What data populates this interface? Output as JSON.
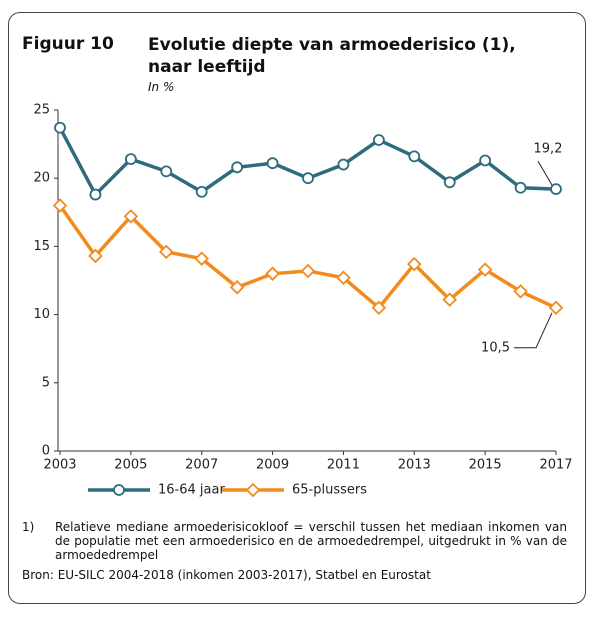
{
  "chart_data": {
    "type": "line",
    "label": "Figuur 10",
    "title": "Evolutie diepte van armoederisico (1), naar leeftijd",
    "subtitle": "In %",
    "x": [
      2003,
      2004,
      2005,
      2006,
      2007,
      2008,
      2009,
      2010,
      2011,
      2012,
      2013,
      2014,
      2015,
      2016,
      2017
    ],
    "series": [
      {
        "name": "16-64 jaar",
        "color": "#2e6b7e",
        "marker": "circle",
        "values": [
          23.7,
          18.8,
          21.4,
          20.5,
          19.0,
          20.8,
          21.1,
          20.0,
          21.0,
          22.8,
          21.6,
          19.7,
          21.3,
          19.3,
          19.2
        ],
        "value_labels": [
          null,
          null,
          null,
          null,
          null,
          null,
          null,
          null,
          null,
          null,
          null,
          null,
          null,
          null,
          "19,2"
        ]
      },
      {
        "name": "65-plussers",
        "color": "#f28a1e",
        "marker": "diamond",
        "values": [
          18.0,
          14.3,
          17.2,
          14.6,
          14.1,
          12.0,
          13.0,
          13.2,
          12.7,
          10.5,
          13.7,
          11.1,
          13.3,
          11.7,
          10.5
        ],
        "value_labels": [
          null,
          null,
          null,
          null,
          null,
          null,
          null,
          null,
          null,
          null,
          null,
          null,
          null,
          null,
          "10,5"
        ]
      }
    ],
    "xlim": [
      2003,
      2017
    ],
    "xticks": [
      2003,
      2005,
      2007,
      2009,
      2011,
      2013,
      2015,
      2017
    ],
    "ylim": [
      0,
      25
    ],
    "yticks": [
      0,
      5,
      10,
      15,
      20,
      25
    ],
    "grid": false,
    "footnote_marker": "1)",
    "footnote": "Relatieve mediane armoederisicokloof = verschil tussen het mediaan inkomen van de populatie met een armoederisico en de armoededrempel, uitgedrukt in % van de armoededrempel",
    "source": "Bron: EU-SILC 2004-2018 (inkomen 2003-2017), Statbel en Eurostat"
  }
}
